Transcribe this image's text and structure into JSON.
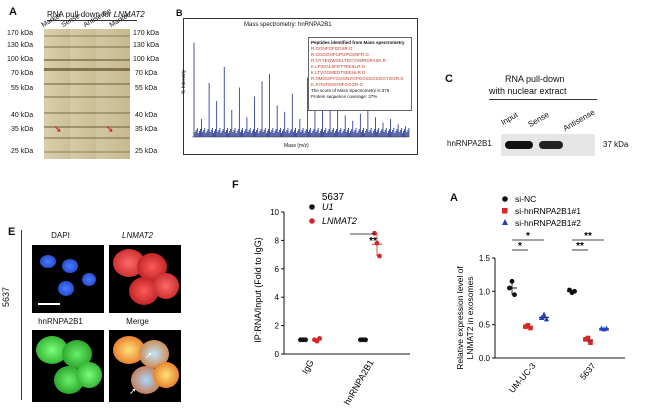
{
  "panelA1": {
    "letter": "A",
    "title_prefix": "RNA pull-down for ",
    "title_gene": "LNMAT2",
    "lanes": [
      "Marker",
      "Sense",
      "Antisense",
      "Marker"
    ],
    "kda_left": [
      "170 kDa",
      "130 kDa",
      "100 kDa",
      "70 kDa",
      "55 kDa",
      "40 kDa",
      "35 kDa",
      "25 kDa"
    ],
    "kda_right": [
      "170 kDa",
      "130 kDa",
      "100 kDa",
      "70 kDa",
      "55 kDa",
      "40 kDa",
      "35 kDa",
      "25 kDa"
    ]
  },
  "panelB": {
    "letter": "B",
    "title": "Mass spectrometry: hnRNPA2B1",
    "ylabel": "% Intensity",
    "xlabel": "Mass (m/z)",
    "legend_title": "Peptides identified from Mass spectrometry",
    "peptides": [
      "R.GGNFGFGDSR.G",
      "R.GGGGNFGPGPGSNFR.G",
      "R.NYYEQWGKLTDCVVMRDPASK.R",
      "K.LFIGGLSFETTEESLR.N",
      "K.LTVGGMEDTSEEHLR.D",
      "R.NMGGPYGGGNYGPGGSGGSGGYGGR.S",
      "K.SYKIFDGGNFGGGR.G"
    ],
    "score_text": "The score of Mass Spectrometry is 376",
    "coverage_text": "Protein sequence coverage: 37%"
  },
  "panelC": {
    "letter": "C",
    "title_line1": "RNA pull-down",
    "title_line2": "with nuclear extract",
    "lanes": [
      "Input",
      "Sense",
      "Antisense"
    ],
    "protein": "hnRNPA2B1",
    "kda": "37 kDa"
  },
  "panelE": {
    "letter": "E",
    "cell_line": "5637",
    "captions": [
      "DAPI",
      "LNMAT2",
      "hnRNPA2B1",
      "Merge"
    ]
  },
  "panelF": {
    "letter": "F",
    "title": "5637",
    "legend": [
      "U1",
      "LNMAT2"
    ],
    "ylabel": "IP:RNA/Input (Fold to IgG)",
    "significance": "**"
  },
  "panelA2": {
    "letter": "A",
    "legend": [
      "si-NC",
      "si-hnRNPA2B1#1",
      "si-hnRNPA2B1#2"
    ],
    "ylabel_line1": "Relative expression level of",
    "ylabel_line2": "LNMAT2 in exosomes",
    "significance": [
      "*",
      "*",
      "**",
      "**"
    ]
  },
  "chart_data": [
    {
      "type": "scatter",
      "panel": "F",
      "title": "5637",
      "categories": [
        "IgG",
        "hnRNPA2B1"
      ],
      "ylim": [
        0,
        10
      ],
      "yticks": [
        0,
        2,
        4,
        6,
        8,
        10
      ],
      "ylabel": "IP:RNA/Input (Fold to IgG)",
      "series": [
        {
          "name": "U1",
          "color": "#111111",
          "values": [
            [
              1.0,
              1.0,
              1.0
            ],
            [
              1.0,
              1.0,
              1.0
            ]
          ]
        },
        {
          "name": "LNMAT2",
          "color": "#d62728",
          "values": [
            [
              1.0,
              0.9,
              1.1
            ],
            [
              8.5,
              7.8,
              6.9
            ]
          ]
        }
      ]
    },
    {
      "type": "scatter",
      "panel": "A",
      "categories": [
        "UM-UC-3",
        "5637"
      ],
      "ylim": [
        0.0,
        1.5
      ],
      "yticks": [
        0.0,
        0.5,
        1.0,
        1.5
      ],
      "series": [
        {
          "name": "si-NC",
          "color": "#111111",
          "marker": "circle",
          "values": [
            [
              1.05,
              1.15,
              0.95
            ],
            [
              1.02,
              0.98,
              1.0
            ]
          ]
        },
        {
          "name": "si-hnRNPA2B1#1",
          "color": "#d62728",
          "marker": "square",
          "values": [
            [
              0.47,
              0.49,
              0.45
            ],
            [
              0.28,
              0.3,
              0.23
            ]
          ]
        },
        {
          "name": "si-hnRNPA2B1#2",
          "color": "#1f3fbf",
          "marker": "triangle",
          "values": [
            [
              0.6,
              0.65,
              0.58
            ],
            [
              0.44,
              0.43,
              0.44
            ]
          ]
        }
      ]
    }
  ]
}
